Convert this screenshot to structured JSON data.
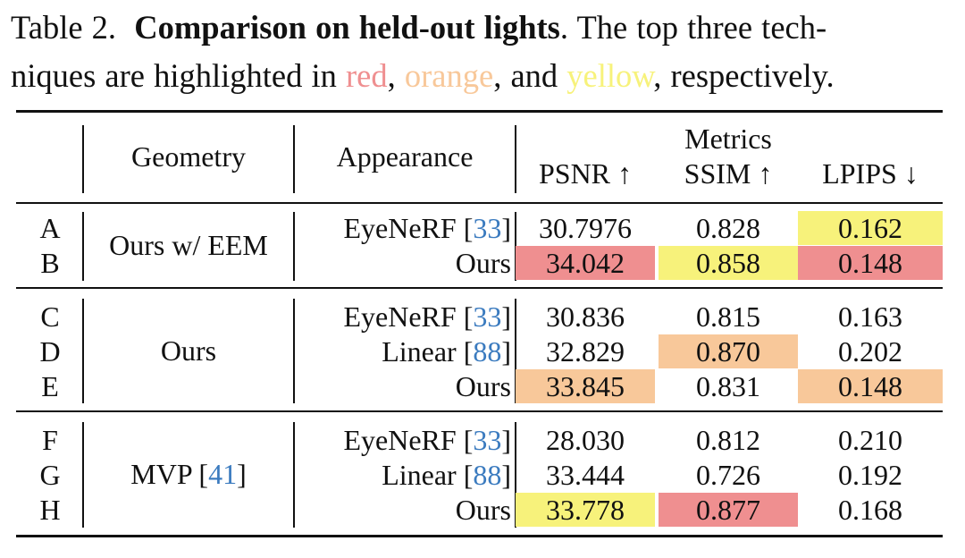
{
  "caption": {
    "label": "Table 2.",
    "title": "Comparison on held-out lights",
    "text1": ". The top three tech-",
    "text2": "niques are highlighted in ",
    "red_word": "red",
    "comma1": ", ",
    "orange_word": "orange",
    "and_text": ", and ",
    "yellow_word": "yellow",
    "end_text": ", respectively."
  },
  "colors": {
    "red": "#ef8f90",
    "orange": "#f8c89a",
    "yellow": "#f7f27b",
    "cite": "#3b7bbf"
  },
  "header": {
    "geometry": "Geometry",
    "appearance": "Appearance",
    "metrics": "Metrics",
    "psnr": "PSNR ↑",
    "ssim": "SSIM ↑",
    "lpips": "LPIPS ↓"
  },
  "groups": [
    {
      "geometry": "Ours w/ EEM",
      "geometry_cite": ""
    },
    {
      "geometry": "Ours",
      "geometry_cite": ""
    },
    {
      "geometry": "MVP [",
      "geometry_cite": "41",
      "geometry_close": "]"
    }
  ],
  "rows": [
    {
      "label": "A",
      "appearance": "EyeNeRF [",
      "cite": "33",
      "close": "]",
      "psnr": "30.7976",
      "ssim": "0.828",
      "lpips": "0.162",
      "hl_psnr": "",
      "hl_ssim": "",
      "hl_lpips": "yellow"
    },
    {
      "label": "B",
      "appearance": "Ours",
      "cite": "",
      "close": "",
      "psnr": "34.042",
      "ssim": "0.858",
      "lpips": "0.148",
      "hl_psnr": "red",
      "hl_ssim": "yellow",
      "hl_lpips": "red"
    },
    {
      "label": "C",
      "appearance": "EyeNeRF [",
      "cite": "33",
      "close": "]",
      "psnr": "30.836",
      "ssim": "0.815",
      "lpips": "0.163",
      "hl_psnr": "",
      "hl_ssim": "",
      "hl_lpips": ""
    },
    {
      "label": "D",
      "appearance": "Linear [",
      "cite": "88",
      "close": "]",
      "psnr": "32.829",
      "ssim": "0.870",
      "lpips": "0.202",
      "hl_psnr": "",
      "hl_ssim": "orange",
      "hl_lpips": ""
    },
    {
      "label": "E",
      "appearance": "Ours",
      "cite": "",
      "close": "",
      "psnr": "33.845",
      "ssim": "0.831",
      "lpips": "0.148",
      "hl_psnr": "orange",
      "hl_ssim": "",
      "hl_lpips": "orange"
    },
    {
      "label": "F",
      "appearance": "EyeNeRF [",
      "cite": "33",
      "close": "]",
      "psnr": "28.030",
      "ssim": "0.812",
      "lpips": "0.210",
      "hl_psnr": "",
      "hl_ssim": "",
      "hl_lpips": ""
    },
    {
      "label": "G",
      "appearance": "Linear [",
      "cite": "88",
      "close": "]",
      "psnr": "33.444",
      "ssim": "0.726",
      "lpips": "0.192",
      "hl_psnr": "",
      "hl_ssim": "",
      "hl_lpips": ""
    },
    {
      "label": "H",
      "appearance": "Ours",
      "cite": "",
      "close": "",
      "psnr": "33.778",
      "ssim": "0.877",
      "lpips": "0.168",
      "hl_psnr": "yellow",
      "hl_ssim": "red",
      "hl_lpips": ""
    }
  ]
}
